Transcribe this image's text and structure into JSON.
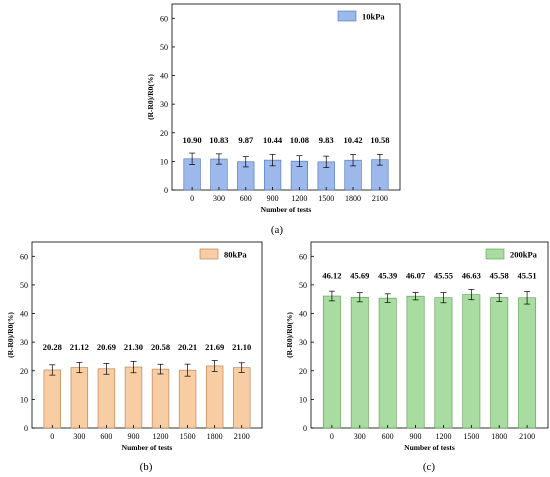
{
  "chart_data": [
    {
      "type": "bar",
      "panel_label": "(a)",
      "legend": "10kPa",
      "color": "#9db8ea",
      "edge": "#4a6fb5",
      "categories": [
        "0",
        "300",
        "600",
        "900",
        "1200",
        "1500",
        "1800",
        "2100"
      ],
      "values": [
        10.9,
        10.83,
        9.87,
        10.44,
        10.08,
        9.83,
        10.42,
        10.58
      ],
      "value_labels": [
        "10.90",
        "10.83",
        "9.87",
        "10.44",
        "10.08",
        "9.83",
        "10.42",
        "10.58"
      ],
      "errors": [
        2.0,
        1.8,
        1.8,
        2.0,
        1.9,
        2.0,
        2.0,
        1.9
      ],
      "xlabel": "Number of tests",
      "ylabel": "(R-R0)/R0(%)",
      "ylim": [
        0,
        65
      ],
      "yticks": [
        0,
        10,
        20,
        30,
        40,
        50,
        60
      ],
      "legend_position": "top-right"
    },
    {
      "type": "bar",
      "panel_label": "(b)",
      "legend": "80kPa",
      "color": "#f9cda3",
      "edge": "#b07a48",
      "categories": [
        "0",
        "300",
        "600",
        "900",
        "1200",
        "1500",
        "1800",
        "2100"
      ],
      "values": [
        20.28,
        21.12,
        20.69,
        21.3,
        20.58,
        20.21,
        21.69,
        21.1
      ],
      "value_labels": [
        "20.28",
        "21.12",
        "20.69",
        "21.30",
        "20.58",
        "20.21",
        "21.69",
        "21.10"
      ],
      "errors": [
        1.8,
        1.8,
        1.9,
        2.0,
        1.7,
        2.1,
        1.9,
        1.7
      ],
      "xlabel": "Number of tests",
      "ylabel": "(R-R0)/R0(%)",
      "ylim": [
        0,
        65
      ],
      "yticks": [
        0,
        10,
        20,
        30,
        40,
        50,
        60
      ],
      "legend_position": "top-right"
    },
    {
      "type": "bar",
      "panel_label": "(c)",
      "legend": "200kPa",
      "color": "#a8dca0",
      "edge": "#5b9a52",
      "categories": [
        "0",
        "300",
        "600",
        "900",
        "1200",
        "1500",
        "1800",
        "2100"
      ],
      "values": [
        46.12,
        45.69,
        45.39,
        46.07,
        45.55,
        46.63,
        45.58,
        45.51
      ],
      "value_labels": [
        "46.12",
        "45.69",
        "45.39",
        "46.07",
        "45.55",
        "46.63",
        "45.58",
        "45.51"
      ],
      "errors": [
        1.7,
        1.6,
        1.5,
        1.3,
        1.8,
        1.8,
        1.4,
        2.2
      ],
      "xlabel": "Number of tests",
      "ylabel": "(R-R0)/R0(%)",
      "ylim": [
        0,
        65
      ],
      "yticks": [
        0,
        10,
        20,
        30,
        40,
        50,
        60
      ],
      "legend_position": "top-right"
    }
  ]
}
